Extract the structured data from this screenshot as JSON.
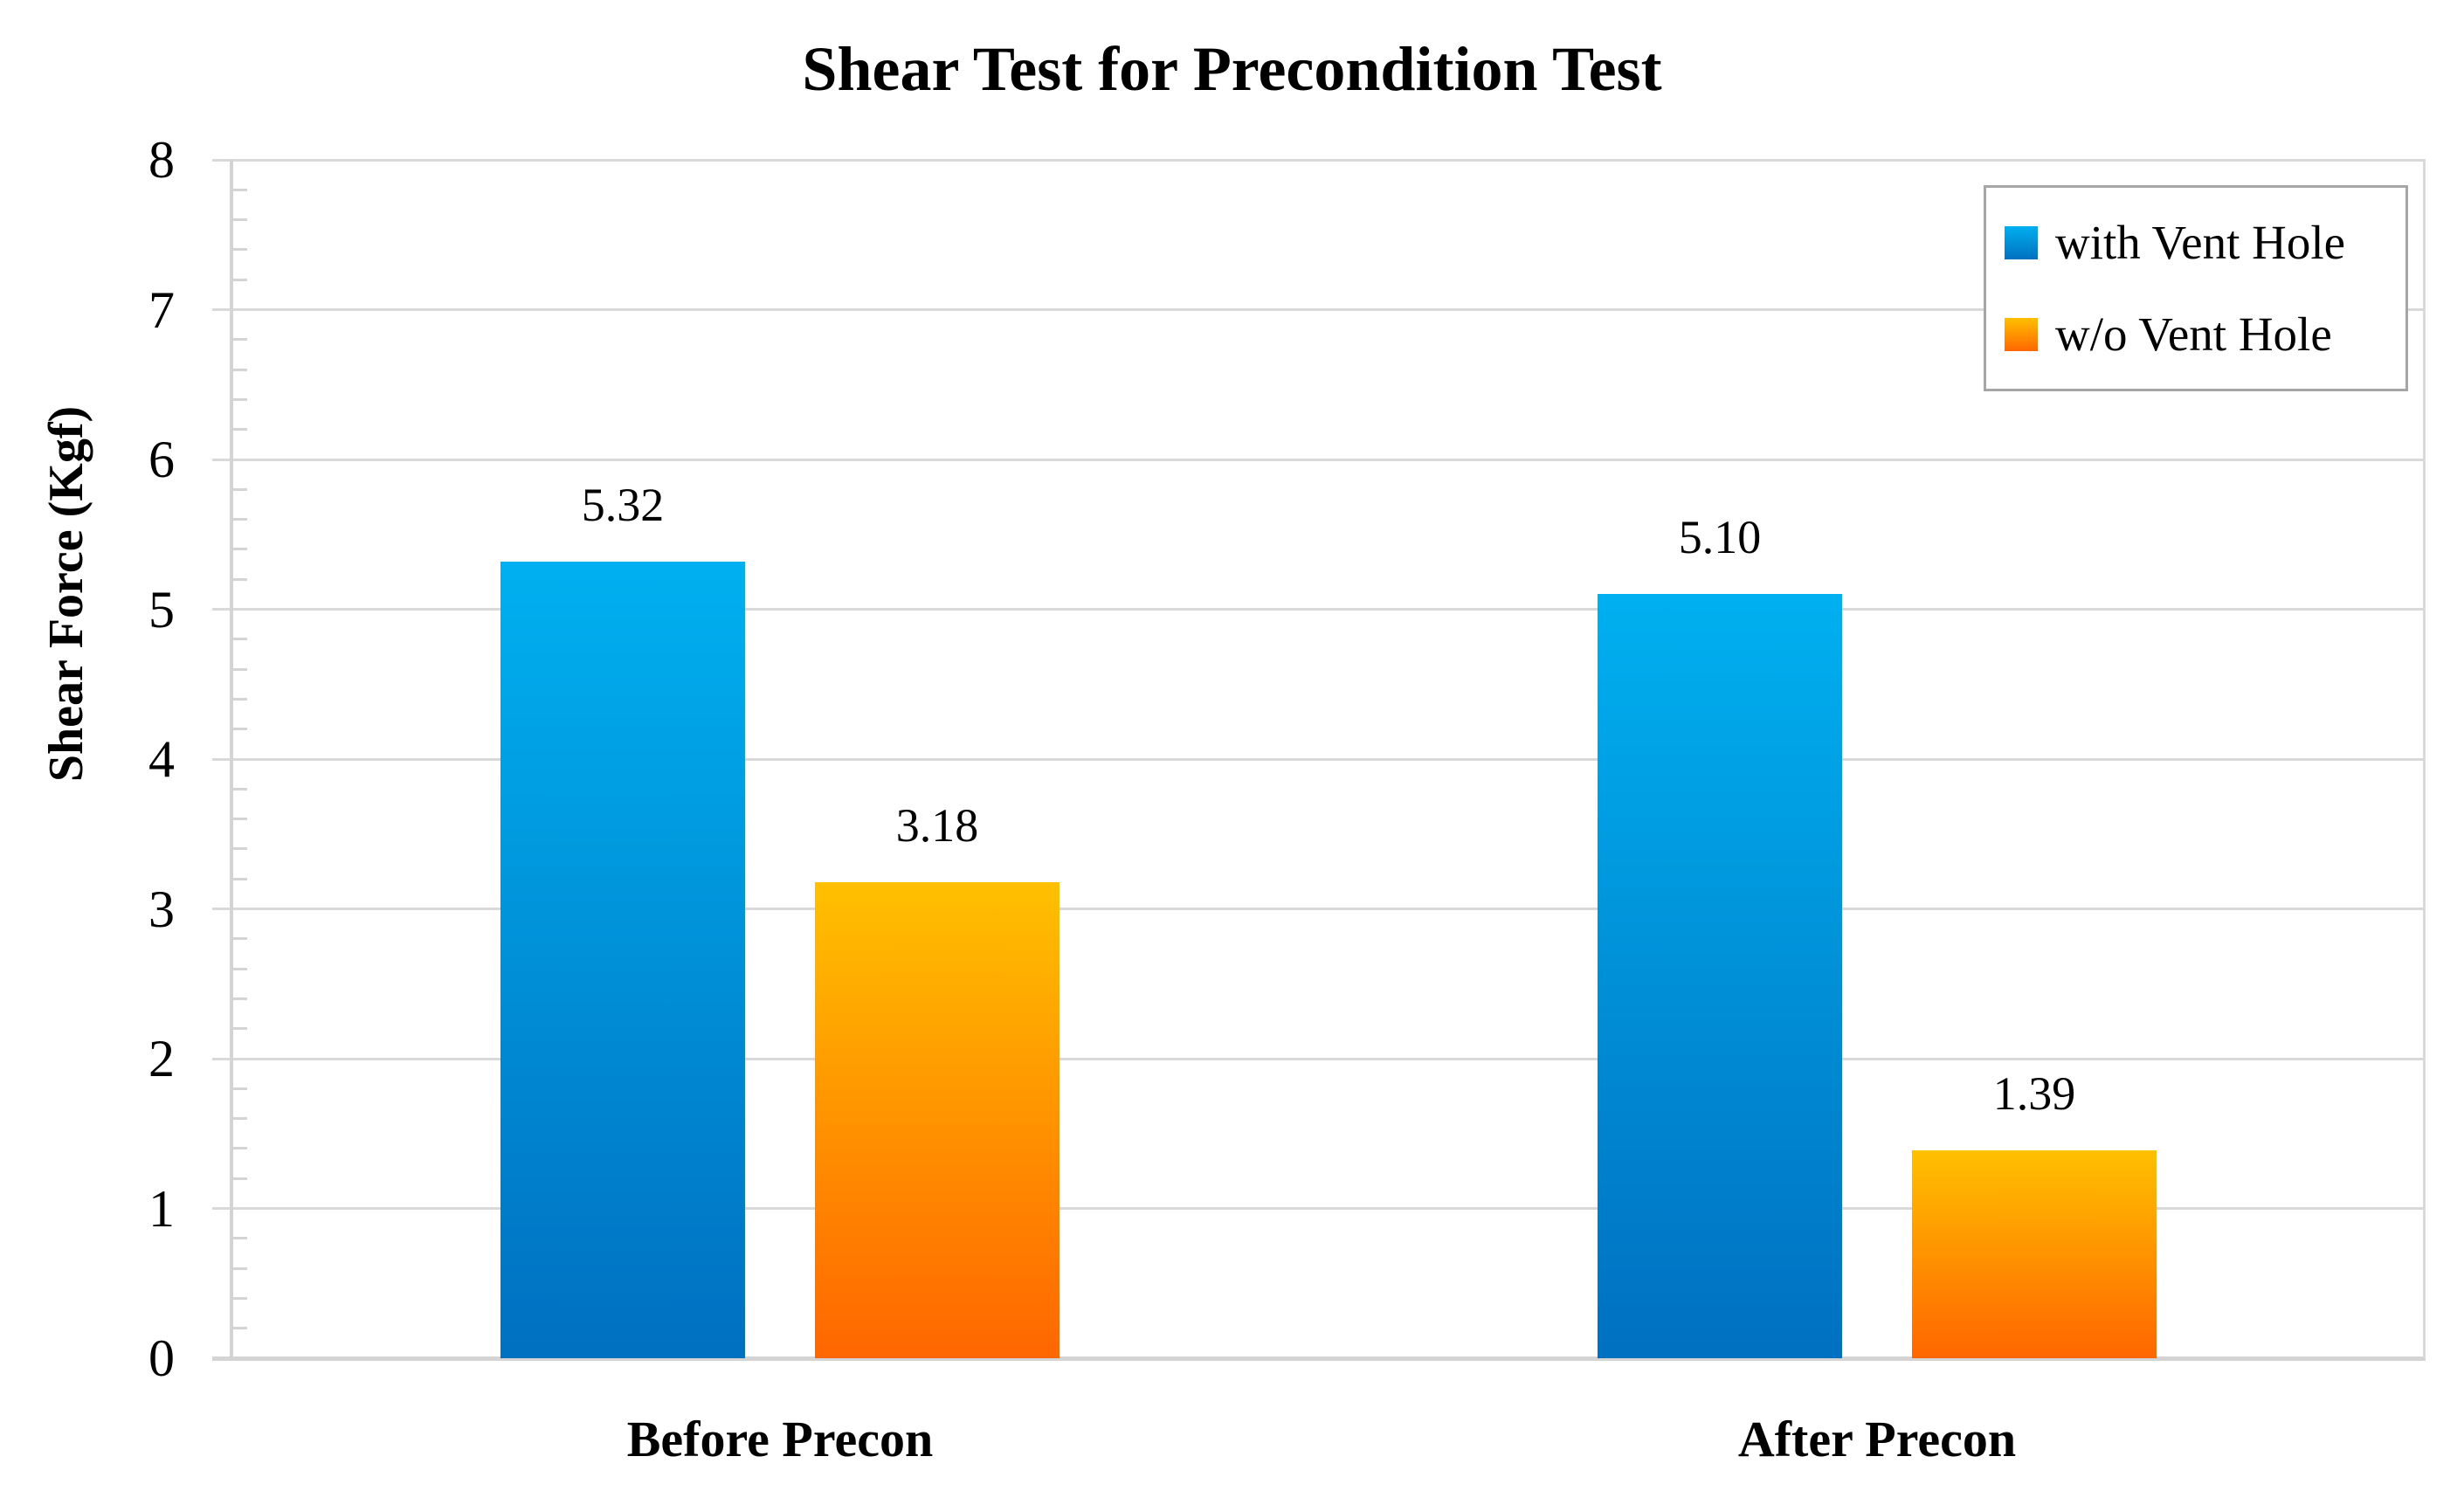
{
  "title": "Shear Test for Precondition Test",
  "chart_data": {
    "type": "bar",
    "title": "Shear Test for Precondition Test",
    "categories": [
      "Before Precon",
      "After Precon"
    ],
    "series": [
      {
        "name": "with Vent Hole",
        "values": [
          5.32,
          5.1
        ],
        "labels": [
          "5.32",
          "5.10"
        ],
        "color_top": "#00B0F0",
        "color_bottom": "#0070C0"
      },
      {
        "name": "w/o Vent Hole",
        "values": [
          3.18,
          1.39
        ],
        "labels": [
          "3.18",
          "1.39"
        ],
        "color_top": "#FFC000",
        "color_bottom": "#FF6600"
      }
    ],
    "xlabel": "",
    "ylabel": "Shear Force (Kgf)",
    "ylim": [
      0,
      8
    ],
    "yticks": [
      "0",
      "1",
      "2",
      "3",
      "4",
      "5",
      "6",
      "7",
      "8"
    ],
    "y_major_unit": 1,
    "y_minor_unit": 0.2,
    "grid": "horizontal major gridlines on",
    "legend_position": "top-right inside plot"
  },
  "colors": {
    "background": "#FFFFFF",
    "text": "#000000",
    "gridline": "#D9D9D9",
    "axis_line": "#D4D4D4",
    "legend_border": "#A6A6A6",
    "blue_top": "#00B0F0",
    "blue_bottom": "#0070C0",
    "orange_top": "#FFC000",
    "orange_bottom": "#FF6600"
  }
}
